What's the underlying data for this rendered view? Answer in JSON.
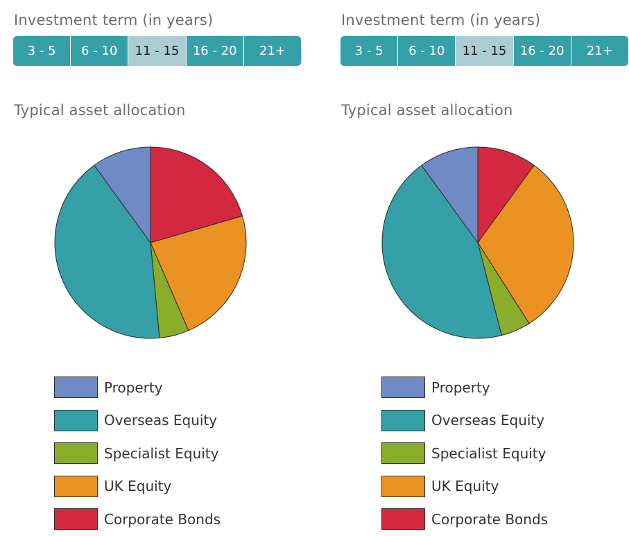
{
  "colors": {
    "term_active": "#35a0a8",
    "term_selected": "#a9cdd2",
    "Property": "#6f8ac5",
    "Overseas Equity": "#35a0a8",
    "Specialist Equity": "#8aad2c",
    "UK Equity": "#ea9323",
    "Corporate Bonds": "#d3283f"
  },
  "panels": [
    {
      "term_title": "Investment term (in years)",
      "terms": [
        "3 - 5",
        "6 - 10",
        "11 - 15",
        "16 - 20",
        "21+"
      ],
      "selected_term": "11 - 15",
      "allocation_title": "Typical asset allocation",
      "legend": [
        "Property",
        "Overseas Equity",
        "Specialist Equity",
        "UK Equity",
        "Corporate Bonds"
      ]
    },
    {
      "term_title": "Investment term (in years)",
      "terms": [
        "3 - 5",
        "6 - 10",
        "11 - 15",
        "16 - 20",
        "21+"
      ],
      "selected_term": "11 - 15",
      "allocation_title": "Typical asset allocation",
      "legend": [
        "Property",
        "Overseas Equity",
        "Specialist Equity",
        "UK Equity",
        "Corporate Bonds"
      ]
    }
  ],
  "chart_data": [
    {
      "type": "pie",
      "title": "Typical asset allocation",
      "categories": [
        "Corporate Bonds",
        "UK Equity",
        "Specialist Equity",
        "Overseas Equity",
        "Property"
      ],
      "values": [
        20.5,
        23,
        5,
        41.5,
        10
      ],
      "legend_position": "bottom"
    },
    {
      "type": "pie",
      "title": "Typical asset allocation",
      "categories": [
        "Corporate Bonds",
        "UK Equity",
        "Specialist Equity",
        "Overseas Equity",
        "Property"
      ],
      "values": [
        10,
        31,
        5,
        44,
        10
      ],
      "legend_position": "bottom"
    }
  ]
}
